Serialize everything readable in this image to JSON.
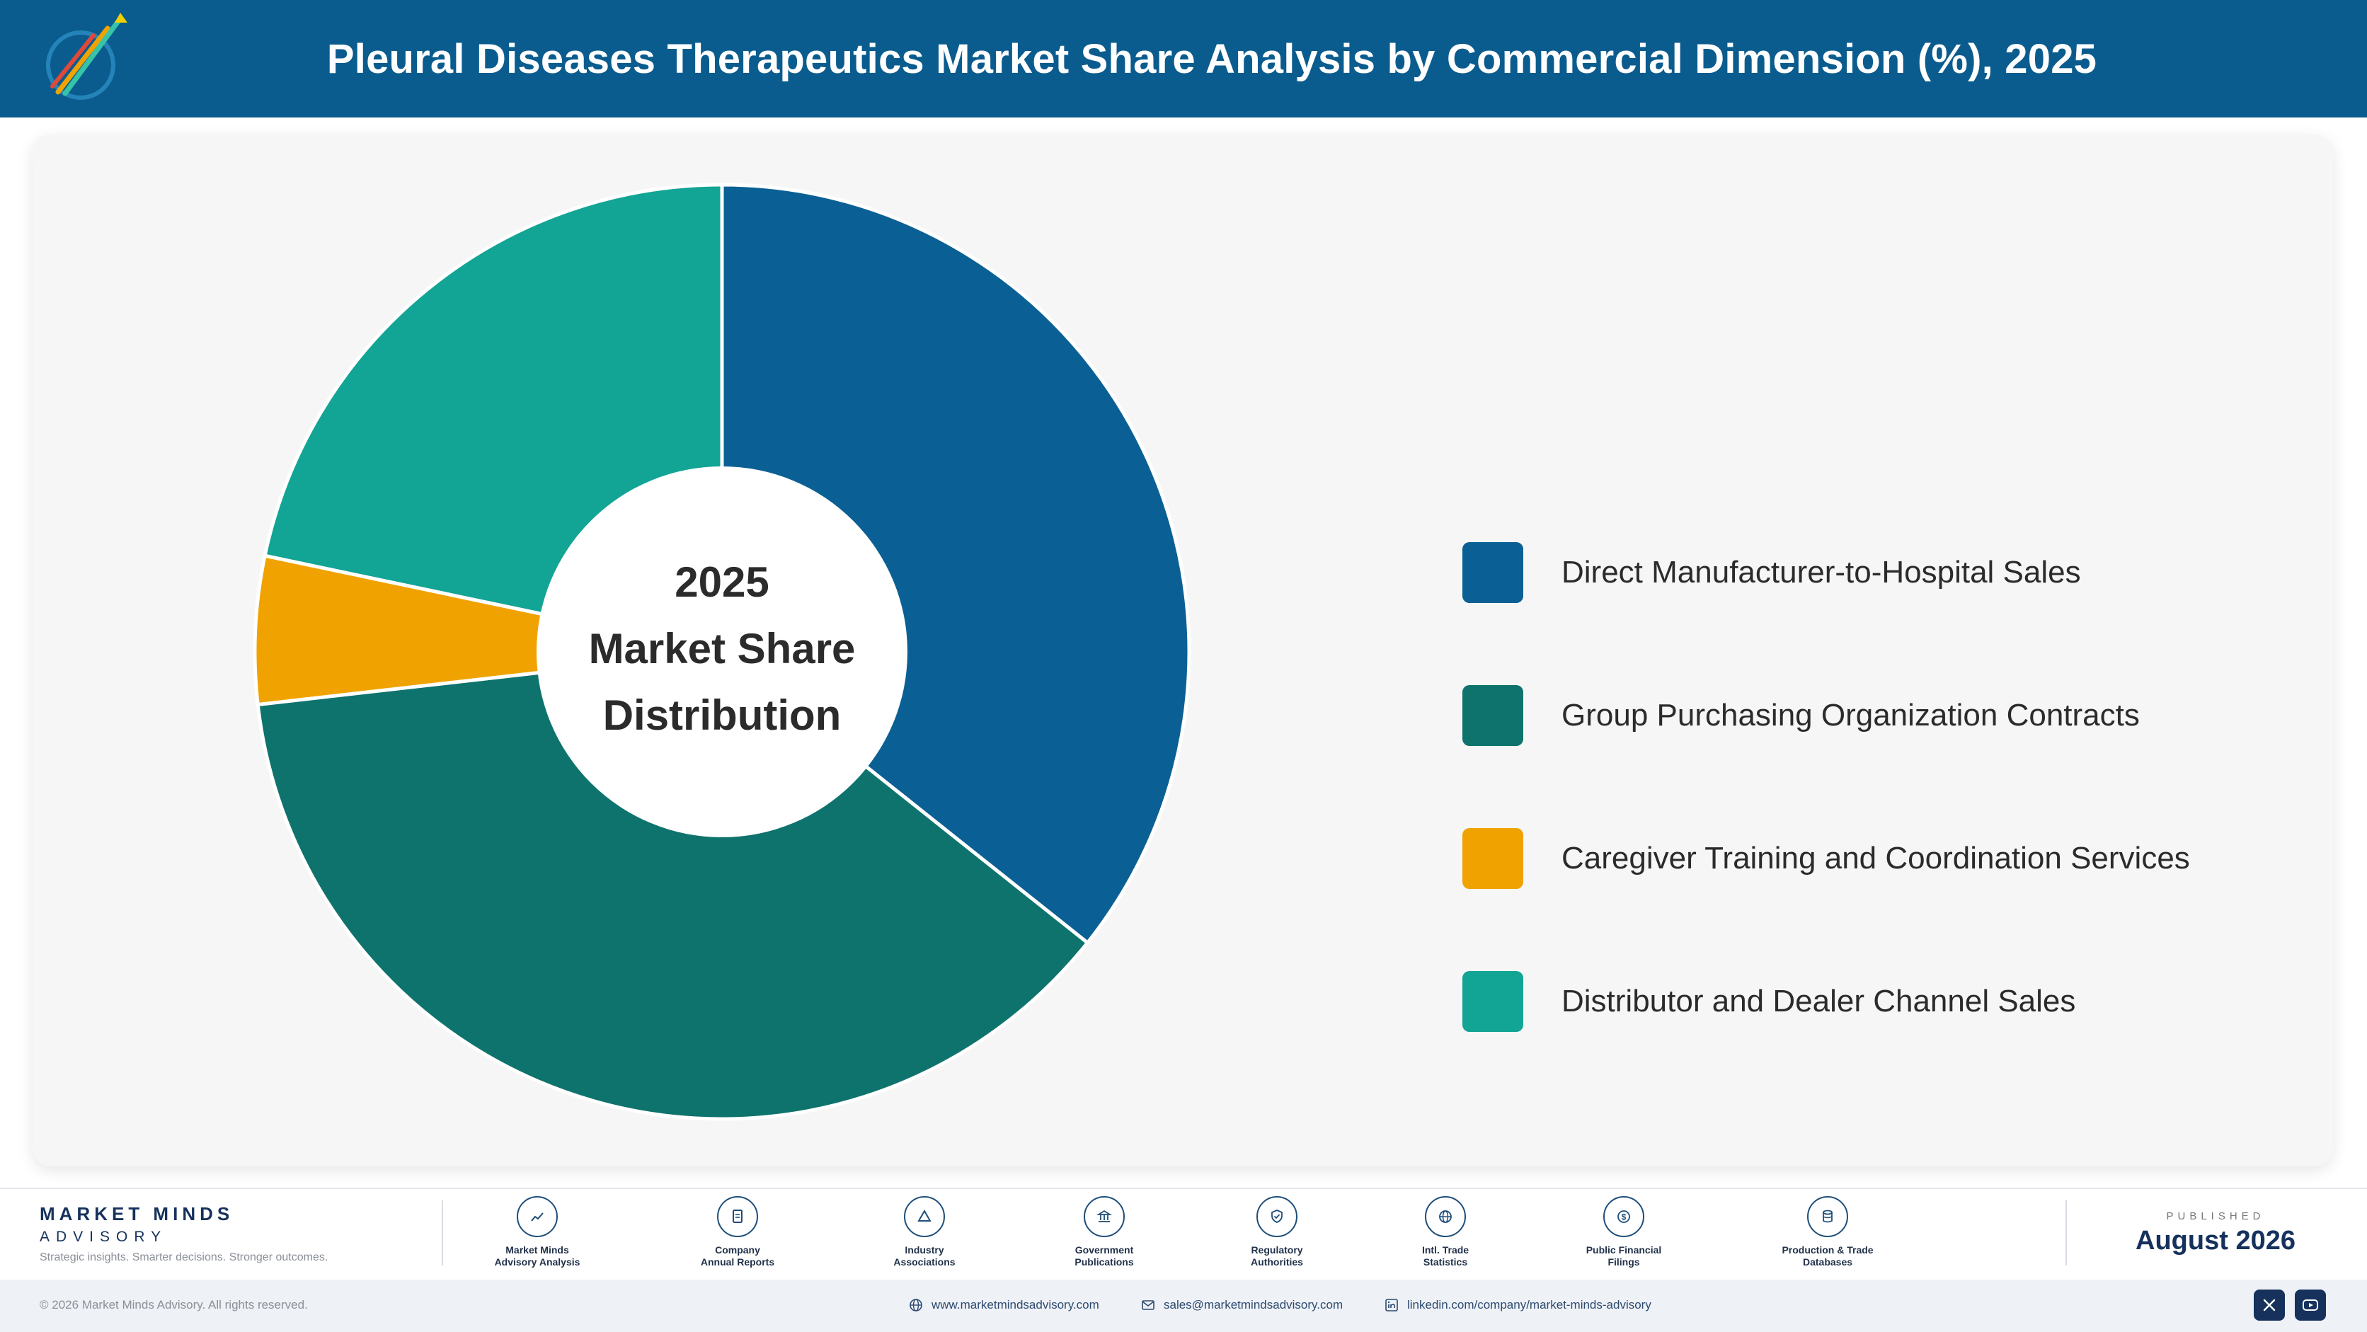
{
  "header": {
    "title": "Pleural Diseases Therapeutics Market Share Analysis by Commercial Dimension (%), 2025"
  },
  "chart_data": {
    "type": "pie",
    "center_label": [
      "2025",
      "Market Share",
      "Distribution"
    ],
    "categories": [
      "Direct Manufacturer-to-Hospital Sales",
      "Group Purchasing Organization Contracts",
      "Caregiver Training and Coordination Services",
      "Distributor and Dealer Channel Sales"
    ],
    "values": [
      35.7,
      37.5,
      5.1,
      21.7
    ],
    "colors": [
      "#0a6094",
      "#0e736c",
      "#f0a300",
      "#12a494"
    ],
    "legend_position": "right"
  },
  "footer": {
    "brand_name": "MARKET MINDS",
    "brand_sub": "ADVISORY",
    "tagline": "Strategic insights. Smarter decisions. Stronger outcomes.",
    "sources": [
      {
        "icon": "trend-chart-icon",
        "label": "Market Minds\nAdvisory Analysis"
      },
      {
        "icon": "document-icon",
        "label": "Company\nAnnual Reports"
      },
      {
        "icon": "network-icon",
        "label": "Industry\nAssociations"
      },
      {
        "icon": "government-building-icon",
        "label": "Government\nPublications"
      },
      {
        "icon": "shield-check-icon",
        "label": "Regulatory\nAuthorities"
      },
      {
        "icon": "globe-icon",
        "label": "Intl. Trade\nStatistics"
      },
      {
        "icon": "dollar-coin-icon",
        "label": "Public Financial\nFilings"
      },
      {
        "icon": "database-icon",
        "label": "Production & Trade\nDatabases"
      }
    ],
    "published_label": "PUBLISHED",
    "published_date": "August 2026",
    "copyright": "© 2026 Market Minds Advisory. All rights reserved.",
    "website": "www.marketmindsadvisory.com",
    "email": "sales@marketmindsadvisory.com",
    "linkedin": "linkedin.com/company/market-minds-advisory"
  }
}
